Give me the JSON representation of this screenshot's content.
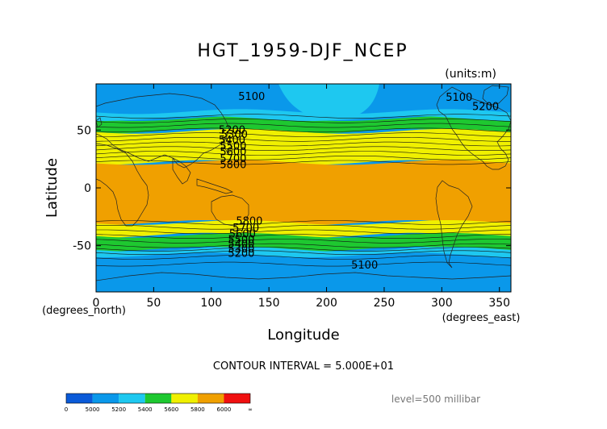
{
  "chart_data": {
    "type": "contour",
    "title": "HGT_1959-DJF_NCEP",
    "units_label": "(units:m)",
    "xlabel": "Longitude",
    "ylabel": "Latitude",
    "x_units_label": "(degrees_east)",
    "y_units_label": "(degrees_north)",
    "xlim": [
      0,
      360
    ],
    "ylim": [
      -90,
      90
    ],
    "x_ticks": [
      0,
      50,
      100,
      150,
      200,
      250,
      300,
      350
    ],
    "y_ticks": [
      50,
      0,
      -50
    ],
    "contour_interval_text": "CONTOUR INTERVAL = 5.000E+01",
    "level_text": "level=500 millibar",
    "colorbar": {
      "tick_labels": [
        "0",
        "5000",
        "5200",
        "5400",
        "5600",
        "5800",
        "6000",
        "∞"
      ],
      "colors": [
        "#0a5ad8",
        "#0a98ea",
        "#1ec8f0",
        "#1ec830",
        "#f0f000",
        "#f0a000",
        "#f01010"
      ],
      "pattern_thresholds": [
        0,
        5000,
        5200,
        5400,
        5600,
        5800,
        6000
      ]
    },
    "contour_labels": [
      {
        "text": "5100",
        "lon": 135,
        "lat": 79
      },
      {
        "text": "5100",
        "lon": 315,
        "lat": 78
      },
      {
        "text": "5200",
        "lon": 338,
        "lat": 70
      },
      {
        "text": "5200",
        "lon": 118,
        "lat": 50
      },
      {
        "text": "5300",
        "lon": 120,
        "lat": 46
      },
      {
        "text": "5400",
        "lon": 118,
        "lat": 41
      },
      {
        "text": "5500",
        "lon": 119,
        "lat": 36
      },
      {
        "text": "5600",
        "lon": 119,
        "lat": 31
      },
      {
        "text": "5700",
        "lon": 119,
        "lat": 25
      },
      {
        "text": "5800",
        "lon": 119,
        "lat": 20
      },
      {
        "text": "5800",
        "lon": 133,
        "lat": -29
      },
      {
        "text": "5700",
        "lon": 130,
        "lat": -35
      },
      {
        "text": "5600",
        "lon": 127,
        "lat": -40
      },
      {
        "text": "5500",
        "lon": 126,
        "lat": -45
      },
      {
        "text": "5400",
        "lon": 126,
        "lat": -49
      },
      {
        "text": "5300",
        "lon": 126,
        "lat": -53
      },
      {
        "text": "5200",
        "lon": 126,
        "lat": -57
      },
      {
        "text": "5100",
        "lon": 233,
        "lat": -67
      }
    ]
  }
}
